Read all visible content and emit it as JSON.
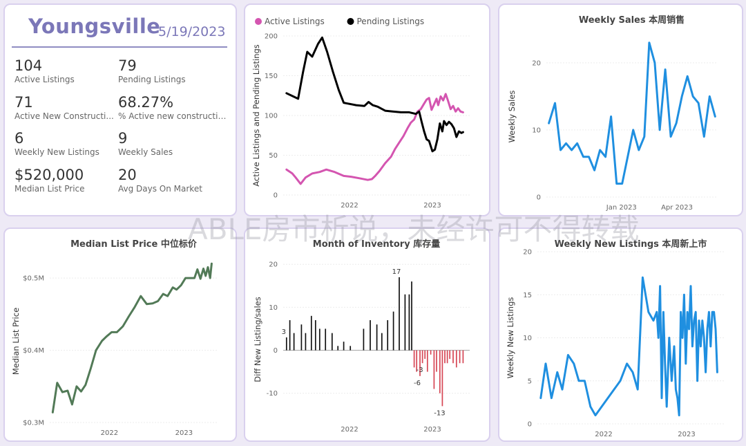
{
  "kpi": {
    "city": "Youngsville",
    "date": "5/19/2023",
    "items": [
      {
        "value": "104",
        "label": "Active Listings"
      },
      {
        "value": "79",
        "label": "Pending Listings"
      },
      {
        "value": "71",
        "label": "Active New Constructi..."
      },
      {
        "value": "68.27%",
        "label": "% Active new constructions"
      },
      {
        "value": "6",
        "label": "Weekly New Listings"
      },
      {
        "value": "9",
        "label": "Weekly Sales"
      },
      {
        "value": "$520,000",
        "label": "Median List Price"
      },
      {
        "value": "20",
        "label": "Avg Days On Market"
      }
    ]
  },
  "watermark": "ABLE房市析说，未经许可不得转载",
  "chart_data": [
    {
      "id": "listings",
      "type": "line",
      "title": "",
      "xlabel": "",
      "ylabel": "Active Listings and Pending Listings",
      "legend_position": "top-left",
      "xlim": [
        2021.2,
        2023.45
      ],
      "ylim": [
        0,
        200
      ],
      "yticks": [
        0,
        50,
        100,
        150,
        200
      ],
      "xticks": [
        {
          "value": 2022,
          "label": "2022"
        },
        {
          "value": 2023,
          "label": "2023"
        }
      ],
      "series": [
        {
          "name": "Active Listings",
          "color": "#d455b0",
          "x": [
            2021.24,
            2021.31,
            2021.35,
            2021.41,
            2021.47,
            2021.55,
            2021.64,
            2021.72,
            2021.82,
            2021.93,
            2022.02,
            2022.12,
            2022.22,
            2022.27,
            2022.31,
            2022.36,
            2022.43,
            2022.5,
            2022.55,
            2022.6,
            2022.65,
            2022.7,
            2022.74,
            2022.78,
            2022.82,
            2022.86,
            2022.9,
            2022.93,
            2022.96,
            2022.99,
            2023.02,
            2023.05,
            2023.07,
            2023.1,
            2023.13,
            2023.16,
            2023.19,
            2023.22,
            2023.25,
            2023.28,
            2023.31,
            2023.34,
            2023.37
          ],
          "values": [
            32,
            27,
            22,
            14,
            22,
            27,
            29,
            32,
            29,
            24,
            23,
            21,
            19,
            20,
            24,
            30,
            40,
            48,
            58,
            66,
            74,
            84,
            91,
            95,
            105,
            108,
            115,
            120,
            122,
            107,
            114,
            121,
            113,
            124,
            119,
            127,
            118,
            108,
            112,
            105,
            109,
            105,
            104
          ]
        },
        {
          "name": "Pending Listings",
          "color": "#000000",
          "x": [
            2021.24,
            2021.32,
            2021.38,
            2021.44,
            2021.49,
            2021.55,
            2021.62,
            2021.67,
            2021.73,
            2021.8,
            2021.87,
            2021.93,
            2021.98,
            2022.08,
            2022.18,
            2022.23,
            2022.28,
            2022.34,
            2022.43,
            2022.52,
            2022.62,
            2022.72,
            2022.8,
            2022.84,
            2022.87,
            2022.9,
            2022.93,
            2022.96,
            2023.0,
            2023.03,
            2023.06,
            2023.09,
            2023.12,
            2023.14,
            2023.17,
            2023.2,
            2023.23,
            2023.26,
            2023.29,
            2023.32,
            2023.35,
            2023.37
          ],
          "values": [
            128,
            124,
            121,
            155,
            180,
            174,
            190,
            198,
            180,
            155,
            132,
            116,
            115,
            113,
            112,
            117,
            113,
            111,
            106,
            105,
            104,
            104,
            102,
            105,
            92,
            80,
            70,
            68,
            55,
            57,
            70,
            90,
            80,
            93,
            88,
            92,
            89,
            84,
            73,
            80,
            78,
            79
          ]
        }
      ]
    },
    {
      "id": "weekly-sales",
      "type": "line",
      "title": "Weekly Sales 本周销售",
      "xlabel": "",
      "ylabel": "Weekly Sales",
      "xlim": [
        "2022-09-01",
        "2023-06-05"
      ],
      "ylim": [
        0,
        24
      ],
      "yticks": [
        0,
        10,
        20
      ],
      "xticks": [
        {
          "value": "2023-01-01",
          "label": "Jan 2023"
        },
        {
          "value": "2023-04-01",
          "label": "Apr 2023"
        }
      ],
      "series": [
        {
          "name": "",
          "color": "#1f8fe0",
          "x": [
            "2022-09-05",
            "2022-09-15",
            "2022-09-24",
            "2022-10-03",
            "2022-10-12",
            "2022-10-21",
            "2022-10-31",
            "2022-11-09",
            "2022-11-18",
            "2022-11-27",
            "2022-12-06",
            "2022-12-15",
            "2022-12-24",
            "2023-01-02",
            "2023-01-11",
            "2023-01-20",
            "2023-01-29",
            "2023-02-07",
            "2023-02-15",
            "2023-02-24",
            "2023-03-04",
            "2023-03-13",
            "2023-03-22",
            "2023-03-31",
            "2023-04-09",
            "2023-04-18",
            "2023-04-27",
            "2023-05-06",
            "2023-05-15",
            "2023-05-24",
            "2023-06-02"
          ],
          "values": [
            11,
            14,
            7,
            8,
            7,
            8,
            6,
            6,
            4,
            7,
            6,
            12,
            2,
            2,
            6,
            10,
            7,
            9,
            23,
            20,
            10,
            19,
            9,
            11,
            15,
            18,
            15,
            14,
            9,
            15,
            12
          ]
        }
      ]
    },
    {
      "id": "median-list-price",
      "type": "line",
      "title": "Median List Price  中位标价",
      "xlabel": "",
      "ylabel": "Median List Price",
      "xlim": [
        2021.2,
        2023.45
      ],
      "ylim": [
        0.3,
        0.525
      ],
      "yticks": [
        {
          "value": 0.3,
          "label": "$0.3M"
        },
        {
          "value": 0.4,
          "label": "$0.4M"
        },
        {
          "value": 0.5,
          "label": "$0.5M"
        }
      ],
      "xticks": [
        {
          "value": 2022,
          "label": "2022"
        },
        {
          "value": 2023,
          "label": "2023"
        }
      ],
      "series": [
        {
          "name": "",
          "color": "#527a57",
          "x": [
            2021.24,
            2021.3,
            2021.37,
            2021.44,
            2021.5,
            2021.56,
            2021.62,
            2021.68,
            2021.75,
            2021.82,
            2021.9,
            2021.96,
            2022.03,
            2022.1,
            2022.18,
            2022.26,
            2022.34,
            2022.42,
            2022.5,
            2022.58,
            2022.65,
            2022.72,
            2022.78,
            2022.85,
            2022.9,
            2022.96,
            2023.02,
            2023.08,
            2023.14,
            2023.18,
            2023.22,
            2023.26,
            2023.29,
            2023.32,
            2023.35,
            2023.37
          ],
          "values": [
            0.314,
            0.355,
            0.342,
            0.344,
            0.325,
            0.35,
            0.343,
            0.352,
            0.375,
            0.4,
            0.413,
            0.419,
            0.425,
            0.425,
            0.433,
            0.447,
            0.46,
            0.475,
            0.464,
            0.465,
            0.468,
            0.478,
            0.475,
            0.487,
            0.484,
            0.49,
            0.5,
            0.5,
            0.5,
            0.512,
            0.499,
            0.513,
            0.503,
            0.515,
            0.5,
            0.52
          ]
        }
      ]
    },
    {
      "id": "month-of-inventory",
      "type": "bar",
      "title": "Month of Inventory 库存量",
      "xlabel": "",
      "ylabel": "Diff New Listing/sales",
      "xlim": [
        2021.2,
        2023.45
      ],
      "ylim": [
        -16,
        21
      ],
      "yticks": [
        -10,
        0,
        10,
        20
      ],
      "xticks": [
        {
          "value": 2022,
          "label": "2022"
        },
        {
          "value": 2023,
          "label": "2023"
        }
      ],
      "positive_color": "#111111",
      "negative_color": "#d64553",
      "data_labels": [
        {
          "value": 3,
          "text": "3"
        },
        {
          "value": 17,
          "text": "17"
        },
        {
          "value": -6,
          "text": "-6"
        },
        {
          "value": -13,
          "text": "-13"
        },
        {
          "value": -3,
          "text": "-3"
        }
      ],
      "x": [
        2021.24,
        2021.28,
        2021.33,
        2021.42,
        2021.47,
        2021.54,
        2021.59,
        2021.64,
        2021.71,
        2021.79,
        2021.86,
        2021.93,
        2022.01,
        2022.17,
        2022.25,
        2022.33,
        2022.39,
        2022.46,
        2022.53,
        2022.6,
        2022.67,
        2022.72,
        2022.75,
        2022.78,
        2022.81,
        2022.85,
        2022.88,
        2022.91,
        2022.94,
        2022.98,
        2023.02,
        2023.05,
        2023.09,
        2023.12,
        2023.15,
        2023.18,
        2023.21,
        2023.25,
        2023.29,
        2023.33,
        2023.37
      ],
      "values": [
        3,
        7,
        4,
        6,
        4,
        8,
        7,
        5,
        5,
        4,
        1,
        2,
        1,
        5,
        7,
        6,
        4,
        7,
        9,
        17,
        13,
        13,
        16,
        -4,
        -5,
        -6,
        -3,
        -2,
        -5,
        -1,
        -9,
        -5,
        -10,
        -13,
        -3,
        -3,
        -2,
        -3,
        -4,
        -3,
        -3
      ]
    },
    {
      "id": "weekly-new-listings",
      "type": "line",
      "title": "Weekly New Listings  本周新上市",
      "xlabel": "",
      "ylabel": "Weekly New Listings",
      "xlim": [
        2021.2,
        2023.45
      ],
      "ylim": [
        0,
        20
      ],
      "yticks": [
        0,
        5,
        10,
        15,
        20
      ],
      "xticks": [
        {
          "value": 2022,
          "label": "2022"
        },
        {
          "value": 2023,
          "label": "2023"
        }
      ],
      "series": [
        {
          "name": "",
          "color": "#1f8fe0",
          "x": [
            2021.24,
            2021.3,
            2021.37,
            2021.44,
            2021.5,
            2021.57,
            2021.64,
            2021.7,
            2021.77,
            2021.84,
            2021.9,
            2022.2,
            2022.28,
            2022.35,
            2022.41,
            2022.47,
            2022.54,
            2022.6,
            2022.64,
            2022.66,
            2022.68,
            2022.7,
            2022.72,
            2022.74,
            2022.76,
            2022.79,
            2022.82,
            2022.85,
            2022.87,
            2022.89,
            2022.91,
            2022.93,
            2022.95,
            2022.97,
            2022.99,
            2023.01,
            2023.03,
            2023.05,
            2023.07,
            2023.09,
            2023.11,
            2023.13,
            2023.15,
            2023.17,
            2023.19,
            2023.21,
            2023.23,
            2023.25,
            2023.27,
            2023.29,
            2023.31,
            2023.33,
            2023.35,
            2023.37
          ],
          "values": [
            3,
            7,
            3,
            6,
            4,
            8,
            7,
            5,
            5,
            2,
            1,
            5,
            7,
            6,
            4,
            17,
            13,
            12,
            13,
            10,
            16,
            3,
            13,
            7,
            2,
            10,
            5,
            9,
            4,
            3,
            1,
            13,
            10,
            15,
            7,
            13,
            11,
            16,
            9,
            12,
            13,
            5,
            12,
            9,
            12,
            10,
            6,
            11,
            13,
            9,
            13,
            13,
            11,
            6
          ]
        }
      ]
    }
  ]
}
